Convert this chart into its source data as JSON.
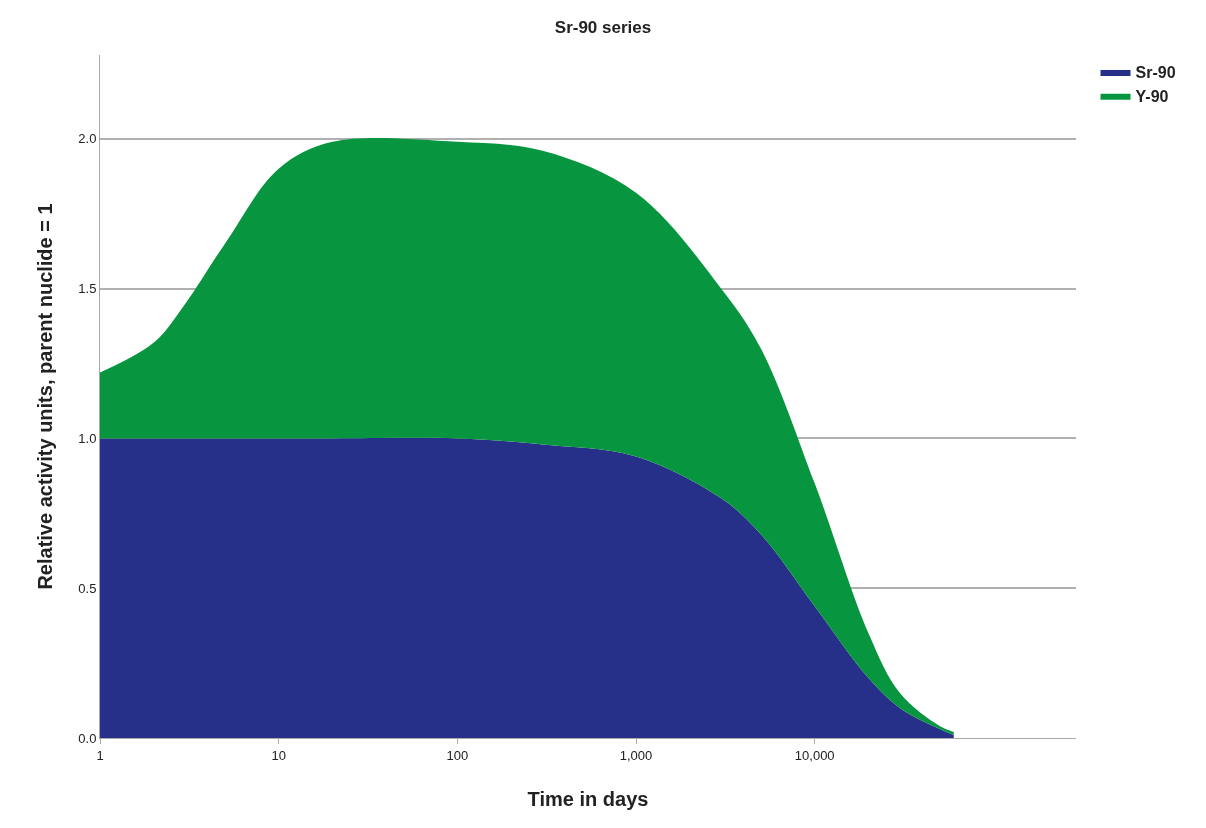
{
  "chart_data": {
    "type": "area",
    "title": "Sr-90 series",
    "xlabel": "Time in days",
    "ylabel": "Relative activity units, parent nuclide = 1",
    "x": [
      1,
      2,
      3,
      5,
      10,
      20,
      100,
      300,
      1000,
      3000,
      5000,
      10000,
      20000,
      30000,
      50000,
      60000
    ],
    "series": [
      {
        "name": "Sr-90",
        "color": "#263089",
        "values": [
          1.0,
          1.0,
          1.0,
          1.0,
          1.0,
          1.0,
          1.0,
          0.98,
          0.94,
          0.8,
          0.68,
          0.44,
          0.2,
          0.1,
          0.03,
          0.01
        ]
      },
      {
        "name": "Y-90",
        "color": "#07963f",
        "values": [
          0.22,
          0.32,
          0.45,
          0.65,
          0.9,
          0.99,
          0.99,
          0.98,
          0.88,
          0.7,
          0.62,
          0.41,
          0.15,
          0.05,
          0.01,
          0.01
        ]
      }
    ],
    "stacked": true,
    "log": "x",
    "xlim": [
      1,
      290000
    ],
    "xticks": [
      1,
      10,
      100,
      {
        "value": 1000,
        "label": "1,000"
      },
      {
        "value": 10000,
        "label": "10,000"
      }
    ],
    "ylim": [
      0,
      2.28
    ],
    "yticks": [
      {
        "value": 0,
        "label": "0.0"
      },
      {
        "value": 0.5,
        "label": "0.5"
      },
      {
        "value": 1,
        "label": "1.0"
      },
      {
        "value": 1.5,
        "label": "1.5"
      },
      {
        "value": 2,
        "label": "2.0"
      }
    ],
    "grid": "y",
    "legend": "top right"
  }
}
